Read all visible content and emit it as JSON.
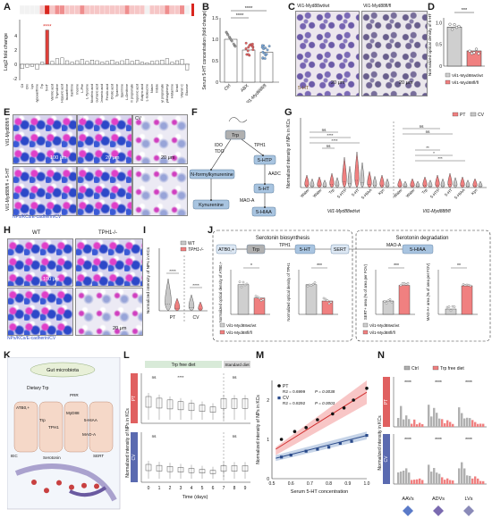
{
  "panel_labels": [
    "A",
    "B",
    "C",
    "D",
    "E",
    "F",
    "G",
    "H",
    "I",
    "J",
    "K",
    "L",
    "M",
    "N"
  ],
  "A": {
    "ylabel": "Log2 fold change",
    "star_label": "****",
    "heat_colors": [
      "#f2f2f2",
      "#f6c6c6",
      "#ef8e8e",
      "#d9261f"
    ],
    "yticks": [
      "4",
      "2",
      "0",
      "-2"
    ],
    "categories": [
      "Cit",
      "Orn",
      "Lys",
      "Hypoxanthine",
      "Trp",
      "5-HT",
      "Vanillic acid",
      "Thymidine",
      "Hippuric acid",
      "Isoxanthine",
      "Xanthine",
      "Inosine",
      "L-Phe",
      "L-Tyrosine",
      "Nicotinic acid",
      "p-Coumaric acid",
      "Cinnamic acid",
      "Ferulic acid",
      "Orotic acid",
      "Tyramine",
      "Spermine",
      "L-Ornithine",
      "Sodium propionate",
      "Propionic acid",
      "Butyric acid",
      "L-Isoleucine",
      "Niacin",
      "Indole",
      "Ethyl propionate",
      "4-Hydroxyphenyl",
      "Histamine",
      "Uracil",
      "Vitamin C",
      "Glucose"
    ],
    "values": [
      -0.6,
      -0.4,
      -0.3,
      -0.7,
      0.3,
      4.8,
      0.4,
      0.8,
      0.9,
      0.5,
      0.3,
      0.5,
      0.7,
      0.4,
      0.6,
      0.5,
      0.3,
      0.4,
      0.6,
      0.3,
      0.5,
      0.7,
      0.4,
      0.6,
      0.3,
      0.2,
      0.4,
      0.5,
      0.6,
      0.8,
      0.3,
      0.5,
      0.7,
      -0.8
    ]
  },
  "B": {
    "ylabel": "Serum 5-HT concentration (fold change)",
    "categories": [
      "Ctrl",
      "ABX",
      "Vil1-Myd88fl/fl"
    ],
    "values": [
      1.0,
      0.75,
      0.7
    ],
    "stars": [
      "****",
      "****"
    ],
    "yticks": [
      "1.5",
      "1.0",
      "0.5",
      "0"
    ],
    "colors": [
      "#9e9e9e",
      "#e06060",
      "#7aa7d8"
    ]
  },
  "C": {
    "labels": [
      "Vil1-Myd88wt/wt",
      "Vil1-Myd88fl/fl"
    ],
    "marker": "5-HT",
    "scale": "20 μm"
  },
  "D": {
    "ylabel": "Normalized optical density of 5-HT",
    "stars": "***",
    "legend": [
      "Vil1-Myd88wt/wt",
      "Vil1-Myd88fl/fl"
    ],
    "values": [
      0.9,
      0.35
    ],
    "yticks": [
      "1.0",
      "0.5",
      "0"
    ]
  },
  "E": {
    "rows": [
      "Vil1-Myd88fl/fl",
      "Vil1-Myd88fl/fl + 5-HT"
    ],
    "cols": [
      "PT",
      "CV"
    ],
    "scales": [
      "100 μm",
      "20 μm",
      "20 μm"
    ],
    "legend": "NPs/KCs/E-cadherin/CV"
  },
  "F": {
    "nodes": [
      "Trp",
      "5-HTP",
      "5-HT",
      "5-HIAA",
      "N-formylkynurenine",
      "Kynurenine"
    ],
    "enzymes": [
      "IDO",
      "TDO",
      "TPH1",
      "AADC",
      "MAO-A"
    ]
  },
  "G": {
    "ylabel": "Normalized intensity of NPs in KCs",
    "legend": [
      "PT",
      "CV"
    ],
    "groups": [
      "Vil1-Myd88wt/wt",
      "Vil1-Myd88fl/fl"
    ],
    "ticks": [
      "Water",
      "Water",
      "Trp",
      "5-HTP",
      "5-HT",
      "5-HIAA",
      "Kyn"
    ],
    "ns_labels": [
      "ns",
      "ns",
      "ns",
      "ns"
    ],
    "stars": [
      "****",
      "****",
      "***"
    ],
    "right_stars": [
      "**",
      "*",
      "***"
    ]
  },
  "H": {
    "labels": [
      "WT",
      "TPH1-/-"
    ],
    "scales": [
      "100 μm",
      "20 μm"
    ],
    "legend": "NPs/KCs/E-cadherin/CV"
  },
  "I": {
    "ylabel": "Normalized intensity of NPs in KCs",
    "legend": [
      "WT",
      "TPH1-/-"
    ],
    "ticks": [
      "PT",
      "CV"
    ],
    "stars": [
      "****",
      "****"
    ]
  },
  "J": {
    "left_title": "Serotonin biosynthesis",
    "right_title": "Serotonin degradation",
    "nodes": [
      "ATB0,+",
      "Trp",
      "TPH1",
      "5-HT",
      "SERT",
      "MAO-A",
      "5-HIAA"
    ],
    "charts": [
      {
        "ylabel": "Normalized optical density of ATB0,+",
        "stars": "*",
        "values": [
          1.0,
          0.55
        ]
      },
      {
        "ylabel": "Normalized optical density of TPH1",
        "stars": "***",
        "values": [
          1.0,
          0.45
        ]
      },
      {
        "ylabel": "SERT+ area (% of area per FOV)",
        "stars": "***",
        "values": [
          6.0,
          13.0
        ]
      },
      {
        "ylabel": "MAO-A+ area (% of area per FOV)",
        "stars": "**",
        "values": [
          3.0,
          16.0
        ]
      }
    ],
    "legend": [
      "Vil1-Myd88wt/wt",
      "Vil1-Myd88fl/fl"
    ]
  },
  "K": {
    "labels": [
      "Gut microbiota",
      "Dietary Trp",
      "ATB0,+",
      "PRR",
      "MyD88",
      "Trp",
      "TPH1",
      "5-HT",
      "5-HIAA",
      "MAO-A",
      "IEC",
      "Serotonin",
      "SERT"
    ]
  },
  "L": {
    "ylabel": "Normalized intensity of NPs in KCs",
    "bars": [
      "Trp free diet",
      "Standard diet"
    ],
    "rows": [
      "PT",
      "CV"
    ],
    "xlabel": "Time (days)",
    "xticks": [
      "0",
      "1",
      "2",
      "3",
      "4",
      "5",
      "6",
      "7",
      "8",
      "9"
    ],
    "star_labels": [
      "ns",
      "****",
      "ns",
      "ns",
      "ns"
    ]
  },
  "M": {
    "xlabel": "Serum 5-HT concentration",
    "ylabel": "Normalized intensity of NPs in KCs",
    "legend": [
      {
        "name": "PT",
        "r2": "R2 = 0.6999",
        "p": "P = 0.0038"
      },
      {
        "name": "CV",
        "r2": "R2 = 0.8292",
        "p": "P = 0.0003"
      }
    ],
    "xticks": [
      "0.5",
      "0.6",
      "0.7",
      "0.8",
      "0.9",
      "1.0"
    ],
    "yticks": [
      "2",
      "1",
      "0"
    ],
    "pt_points": [
      [
        0.55,
        1.0
      ],
      [
        0.62,
        1.2
      ],
      [
        0.68,
        1.3
      ],
      [
        0.74,
        1.5
      ],
      [
        0.82,
        1.65
      ],
      [
        0.88,
        1.8
      ],
      [
        0.93,
        2.0
      ],
      [
        1.0,
        2.3
      ]
    ],
    "cv_points": [
      [
        0.55,
        0.55
      ],
      [
        0.6,
        0.6
      ],
      [
        0.68,
        0.7
      ],
      [
        0.74,
        0.75
      ],
      [
        0.8,
        0.8
      ],
      [
        0.86,
        0.9
      ],
      [
        0.92,
        0.95
      ],
      [
        1.0,
        1.1
      ]
    ]
  },
  "N": {
    "ylabel": "Normalized intensity in KCs",
    "legend": [
      "Ctrl",
      "Trp free diet"
    ],
    "groups": [
      "AAVs",
      "ADVs",
      "LVs"
    ],
    "rows": [
      "PT",
      "CV"
    ],
    "stars": "****"
  }
}
